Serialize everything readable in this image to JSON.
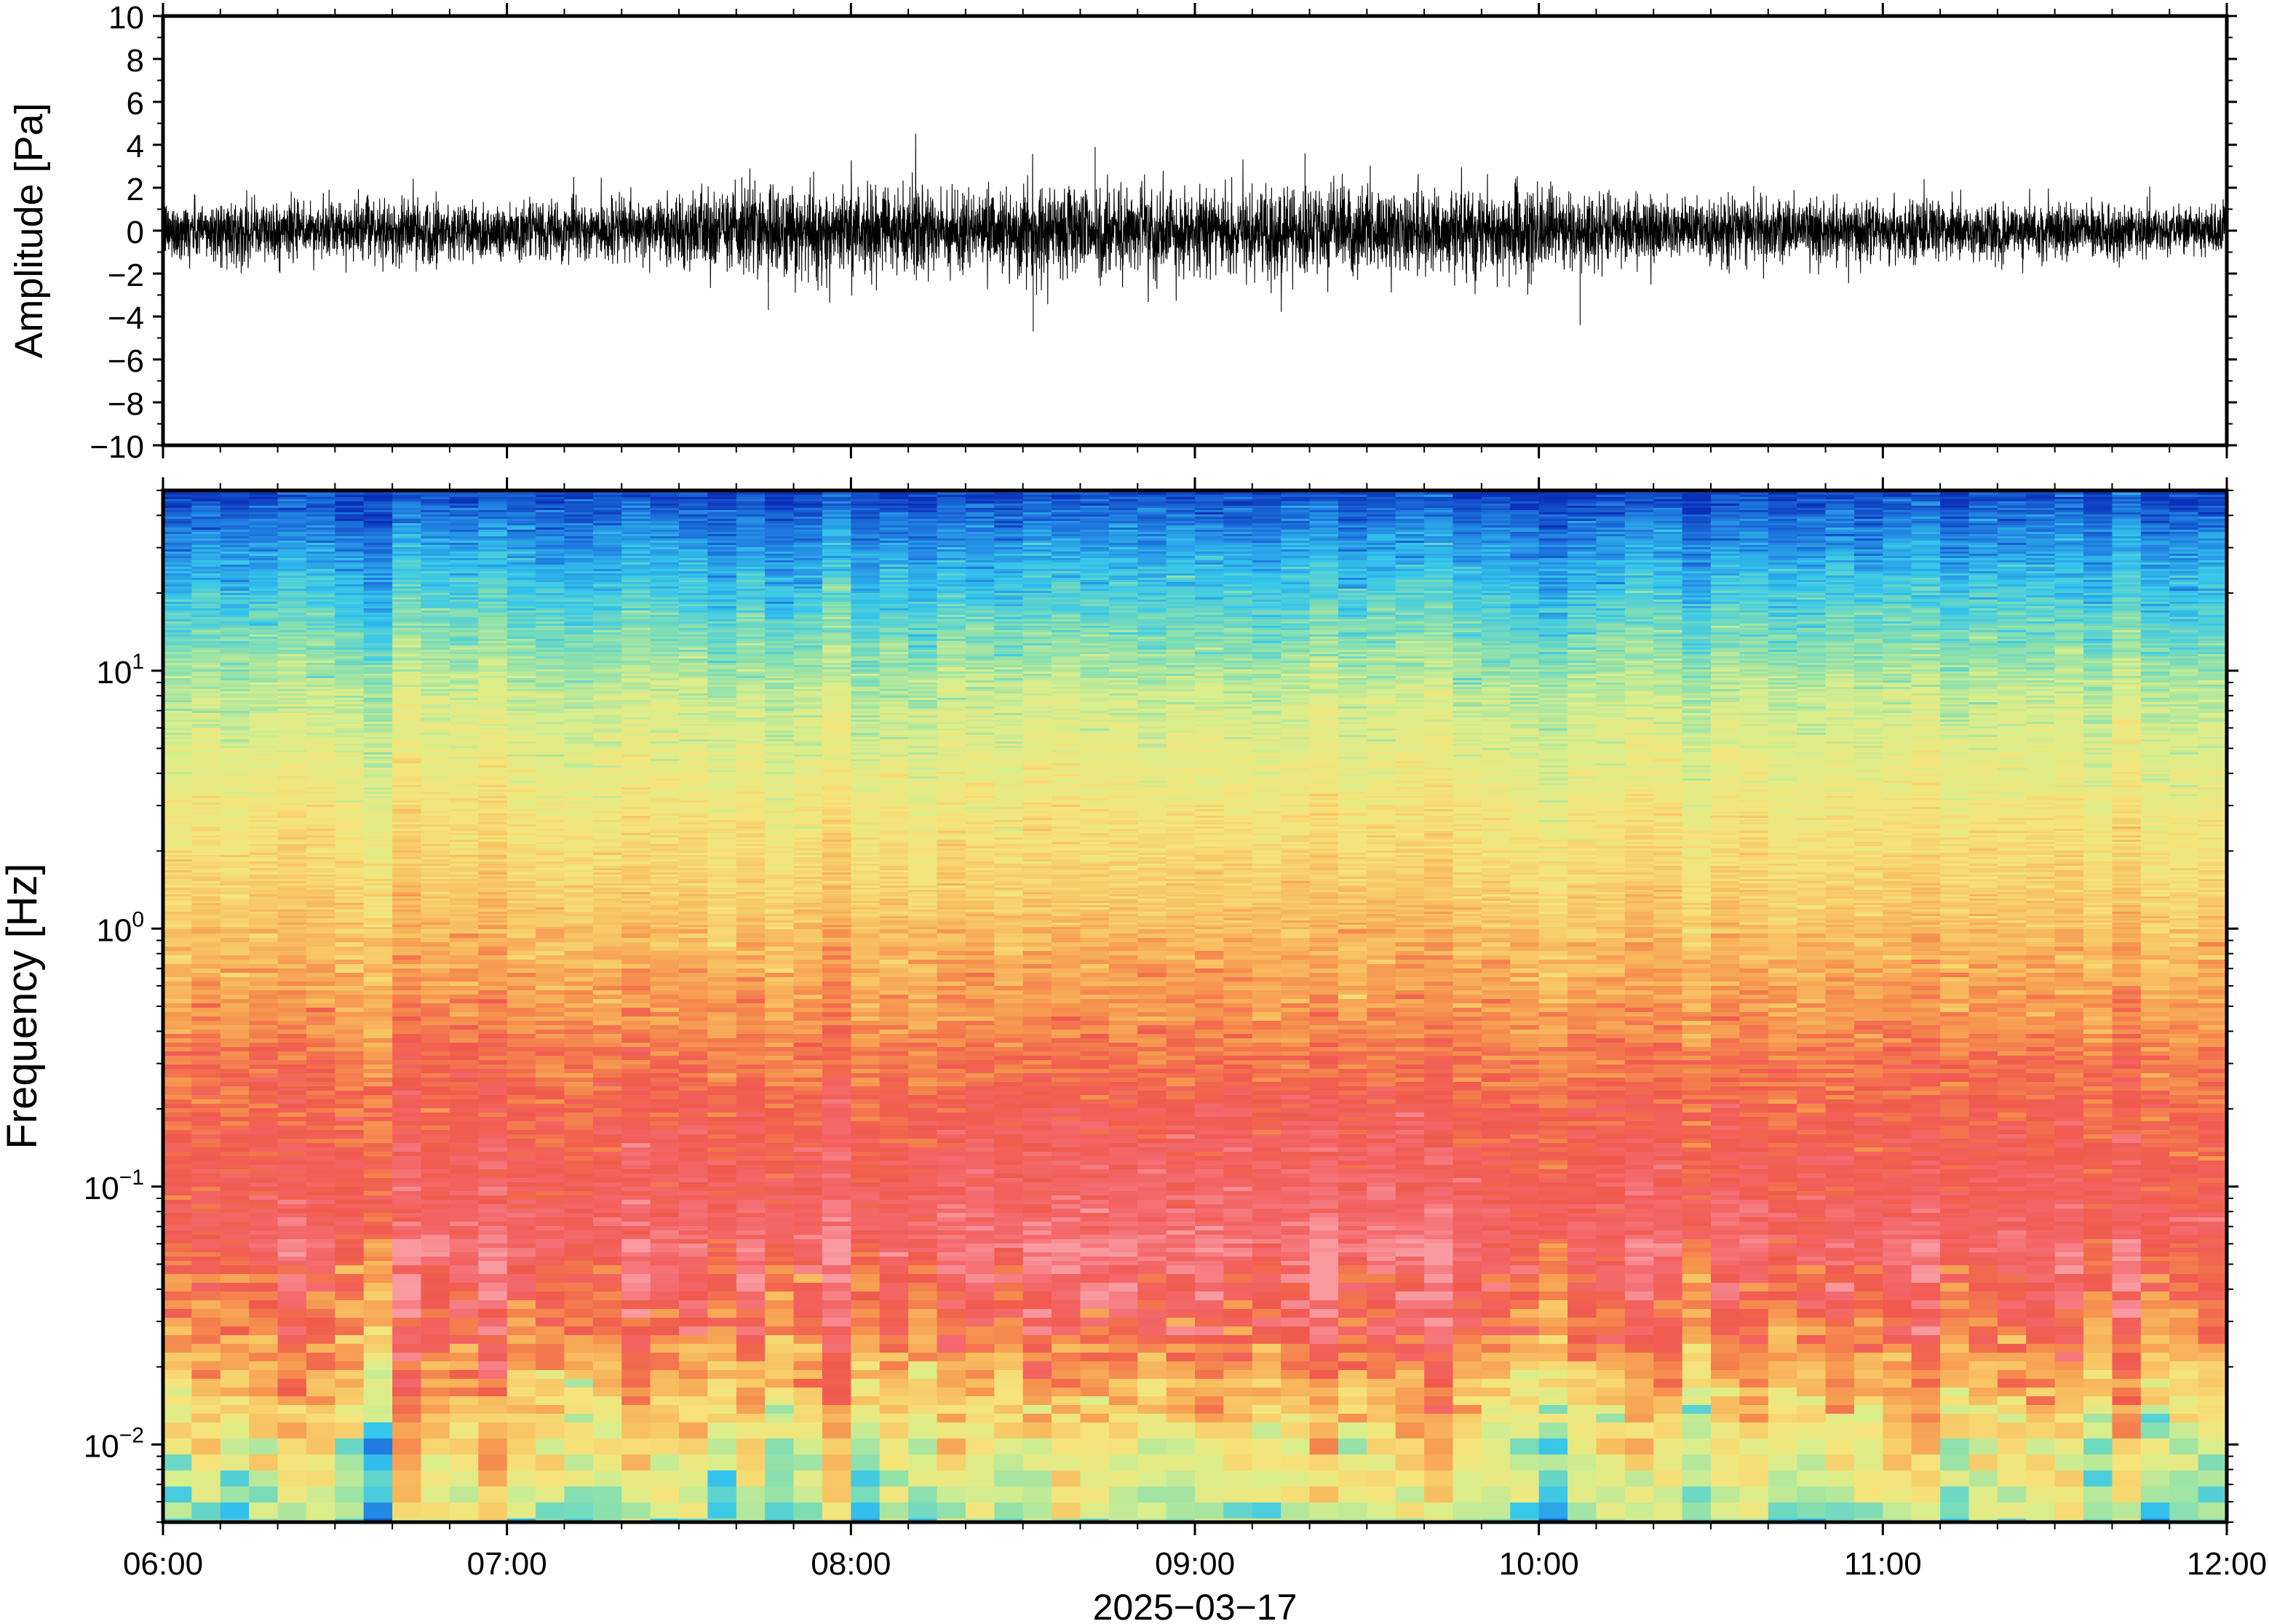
{
  "chart_data": [
    {
      "type": "line",
      "series": [
        {
          "values_note": "",
          "amplitude_envelope": [
            [
              0.0,
              1.6
            ],
            [
              0.25,
              1.7
            ],
            [
              0.5,
              1.5
            ],
            [
              0.75,
              1.8
            ],
            [
              1.0,
              1.6
            ],
            [
              1.25,
              1.5
            ],
            [
              1.5,
              1.9
            ],
            [
              1.75,
              2.6
            ],
            [
              2.0,
              2.4
            ],
            [
              2.25,
              2.2
            ],
            [
              2.5,
              2.3
            ],
            [
              2.75,
              2.6
            ],
            [
              3.0,
              2.1
            ],
            [
              3.25,
              2.5
            ],
            [
              3.5,
              2.2
            ],
            [
              3.75,
              2.3
            ],
            [
              4.0,
              2.2
            ],
            [
              4.25,
              1.9
            ],
            [
              4.5,
              1.8
            ],
            [
              4.75,
              1.7
            ],
            [
              5.0,
              1.7
            ],
            [
              5.25,
              1.6
            ],
            [
              5.5,
              1.5
            ],
            [
              5.75,
              1.4
            ],
            [
              6.0,
              1.4
            ]
          ]
        }
      ],
      "ylabel": "Amplitude [Pa]",
      "ylim": [
        -10,
        10
      ],
      "yticks": [
        "10",
        "8",
        "6",
        "4",
        "2",
        "0",
        "−2",
        "−4",
        "−6",
        "−8",
        "−10"
      ],
      "yticks_values": [
        10,
        8,
        6,
        4,
        2,
        0,
        -2,
        -4,
        -6,
        -8,
        -10
      ],
      "peaks": [
        {
          "t": 2.71,
          "a": 3.9
        },
        {
          "t": 2.53,
          "a": -4.7
        },
        {
          "t": 4.12,
          "a": -4.4
        },
        {
          "t": 1.76,
          "a": -3.7
        },
        {
          "t": 3.32,
          "a": 3.6
        }
      ]
    },
    {
      "type": "heatmap",
      "ylabel": "Frequency [Hz]",
      "yscale": "log",
      "ylim": [
        0.005,
        50
      ],
      "yticks_exponents": [
        "1",
        "0",
        "−1",
        "−2"
      ],
      "yticks_values": [
        10,
        1,
        0.1,
        0.01
      ],
      "xlabel": "2025−03−17",
      "xticks": [
        "06:00",
        "07:00",
        "08:00",
        "09:00",
        "10:00",
        "11:00",
        "12:00"
      ],
      "xlim_hours": [
        6,
        12
      ],
      "colormap": "jet-like (blue high frequency, red low frequency)",
      "colors": {
        "stops": [
          "#0a2fb8",
          "#1f7be0",
          "#35c6ec",
          "#86dfb0",
          "#d8ee8c",
          "#f6e47a",
          "#f8c060",
          "#f6924f",
          "#f05a4d",
          "#f46a6e",
          "#f99aa0"
        ]
      }
    }
  ]
}
